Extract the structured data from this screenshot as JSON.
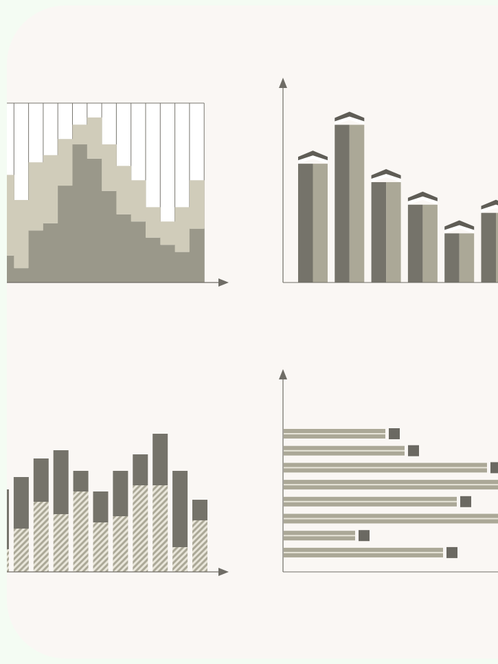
{
  "chart_data": [
    {
      "type": "step",
      "ylim": [
        0,
        100
      ],
      "series": [
        {
          "color": "#9a988a",
          "values": [
            15,
            8,
            29,
            33,
            54,
            77,
            69,
            51,
            38,
            34,
            25,
            21,
            17,
            30
          ]
        },
        {
          "color": "#d0ccba",
          "values": [
            45,
            38,
            38,
            38,
            26,
            11,
            23,
            26,
            27,
            23,
            17,
            13,
            25,
            27
          ]
        }
      ]
    },
    {
      "type": "bar3d",
      "ylim": [
        0,
        100
      ],
      "color": "#75736a",
      "values": [
        58,
        77,
        49,
        38,
        24,
        34
      ]
    },
    {
      "type": "stacked",
      "ylim": [
        0,
        100
      ],
      "series": [
        {
          "color": "#aba897",
          "values": [
            11,
            21,
            34,
            28,
            39,
            24,
            27,
            42,
            42,
            12,
            25
          ]
        },
        {
          "color": "#75736a",
          "values": [
            29,
            25,
            21,
            31,
            10,
            15,
            22,
            15,
            25,
            37,
            10
          ]
        }
      ]
    },
    {
      "type": "barh",
      "xlim": [
        0,
        100
      ],
      "color": "#aba897",
      "values": [
        37,
        44,
        74,
        90,
        63,
        90,
        26,
        58
      ]
    }
  ]
}
